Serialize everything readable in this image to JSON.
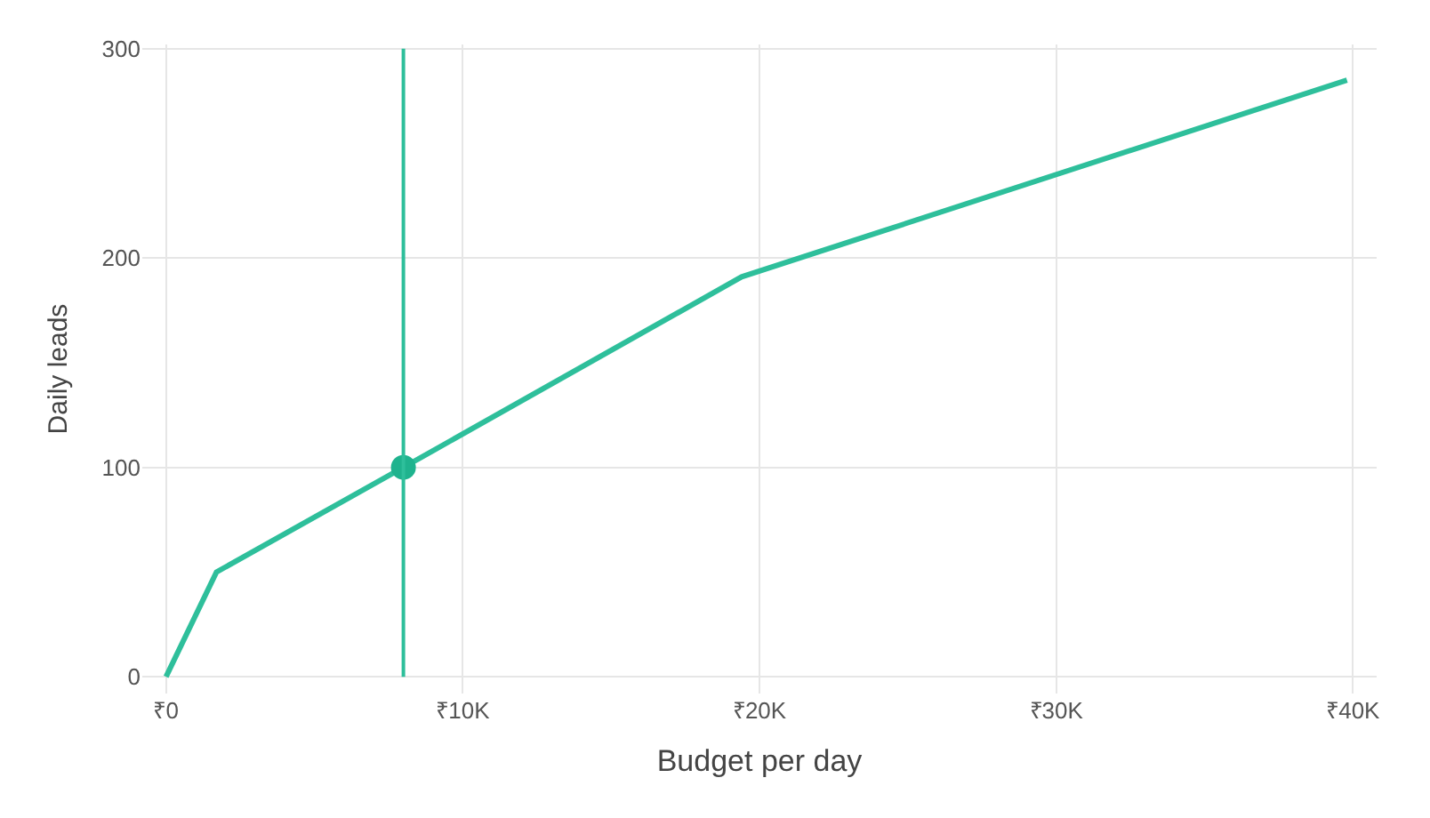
{
  "chart_data": {
    "type": "line",
    "xlabel": "Budget per day",
    "ylabel": "Daily leads",
    "xlim": [
      0,
      40000
    ],
    "ylim": [
      0,
      300
    ],
    "xticks": [
      {
        "value": 0,
        "label": "₹0"
      },
      {
        "value": 10000,
        "label": "₹10K"
      },
      {
        "value": 20000,
        "label": "₹20K"
      },
      {
        "value": 30000,
        "label": "₹30K"
      },
      {
        "value": 40000,
        "label": "₹40K"
      }
    ],
    "yticks": [
      0,
      100,
      200,
      300
    ],
    "series": [
      {
        "color": "#2ebf9b",
        "x": [
          0,
          1700,
          8000,
          19400,
          39800
        ],
        "values": [
          0,
          50,
          100,
          191,
          285
        ],
        "marker": "none",
        "line_style": "solid"
      },
      {
        "type": "scatter",
        "color": "#1fb38e",
        "x": [
          8000
        ],
        "values": [
          100
        ],
        "marker": "circle"
      }
    ],
    "ref_lines": [
      {
        "axis": "x",
        "value": 8000,
        "color": "#2ebf9b",
        "line_style": "solid"
      }
    ],
    "grid": true
  }
}
